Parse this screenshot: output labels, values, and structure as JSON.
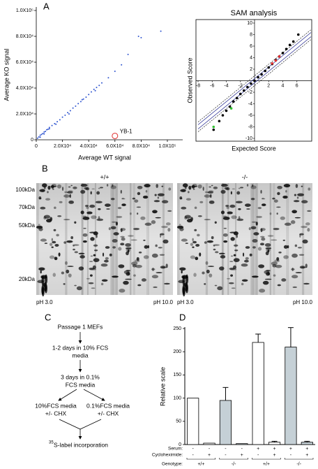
{
  "panel_labels": [
    "A",
    "B",
    "C",
    "D"
  ],
  "chart_data": [
    {
      "type": "scatter",
      "xlabel": "Average WT signal",
      "ylabel": "Average KO signal",
      "color": "#2f55d0",
      "xlim": [
        0,
        100000
      ],
      "ylim": [
        0,
        100000
      ],
      "xticks": [
        0,
        {
          "value": 20000,
          "label": "2.0X10⁴"
        },
        {
          "value": 40000,
          "label": "4.0X10⁴"
        },
        {
          "value": 60000,
          "label": "6.0X10⁴"
        },
        {
          "value": 80000,
          "label": "8.0X10⁴"
        },
        {
          "value": 100000,
          "label": "1.0X10⁵"
        }
      ],
      "yticks": [
        0,
        {
          "value": 20000,
          "label": "2.0X10⁴"
        },
        {
          "value": 40000,
          "label": "4.0X10⁴"
        },
        {
          "value": 60000,
          "label": "6.0X10⁴"
        },
        {
          "value": 80000,
          "label": "8.0X10⁴"
        },
        {
          "value": 100000,
          "label": "1.0X10⁵"
        }
      ],
      "x": [
        1000,
        2000,
        3000,
        4000,
        5000,
        6000,
        7000,
        8000,
        9000,
        10000,
        12000,
        14000,
        16000,
        18000,
        20000,
        22000,
        24000,
        26000,
        28000,
        30000,
        32000,
        34000,
        36000,
        38000,
        40000,
        42000,
        44000,
        46000,
        48000,
        50000,
        55000,
        60000,
        65000,
        70000,
        78000,
        80000,
        95000,
        3000,
        6000,
        10000,
        15000,
        25000,
        35000,
        45000
      ],
      "y": [
        1200,
        2200,
        3500,
        4100,
        4800,
        6000,
        6500,
        7800,
        8200,
        9500,
        11000,
        12500,
        14000,
        15500,
        17500,
        19000,
        21000,
        22500,
        24500,
        26000,
        28000,
        29500,
        31500,
        33000,
        35000,
        37000,
        39000,
        40500,
        42000,
        44000,
        48000,
        53000,
        58000,
        66000,
        80000,
        79000,
        84000,
        2000,
        4500,
        8500,
        12000,
        20000,
        31000,
        38000
      ],
      "annotations": [
        {
          "text": "YB-1",
          "x": 60000,
          "y": 3000,
          "color": "#e03030"
        }
      ]
    },
    {
      "type": "scatter",
      "title": "SAM analysis",
      "xlabel": "Expected Score",
      "ylabel": "Observed Score",
      "xlim": [
        -8,
        8
      ],
      "ylim": [
        -10,
        10
      ],
      "xticks": [
        -8,
        -6,
        -4,
        -2,
        2,
        4,
        6
      ],
      "yticks": [
        -10,
        -8,
        -6,
        -4,
        -2,
        2,
        4,
        6,
        8,
        10
      ],
      "series": [
        {
          "color": "#000000",
          "x": [
            -5.8,
            -5,
            -4.5,
            -4,
            -3.5,
            -3,
            -2.5,
            -2,
            -1.5,
            -1,
            -0.5,
            0,
            0.5,
            1,
            1.5,
            2,
            2.5,
            3,
            3.5,
            4,
            4.5,
            5,
            5.5,
            6.2
          ],
          "y": [
            -8.5,
            -7,
            -6,
            -5.2,
            -4.5,
            -3.6,
            -3,
            -2.3,
            -1.7,
            -1.1,
            -0.5,
            0,
            0.6,
            1.1,
            1.7,
            2.3,
            2.9,
            3.6,
            4.2,
            4.8,
            5.5,
            6.2,
            6.8,
            8
          ]
        },
        {
          "color": "#e03030",
          "x": [
            2.5,
            3,
            3.5
          ],
          "y": [
            3,
            3.5,
            4.2
          ]
        },
        {
          "color": "#30c030",
          "x": [
            -5.8,
            -3.3
          ],
          "y": [
            -8,
            -4.8
          ]
        }
      ]
    },
    {
      "type": "bar",
      "ylabel": "Relative scale",
      "ylim": [
        0,
        250
      ],
      "yticks": [
        0,
        50,
        100,
        150,
        200,
        250
      ],
      "values": [
        100,
        3,
        95,
        2,
        220,
        5,
        210,
        5
      ],
      "errors": [
        null,
        null,
        28,
        null,
        18,
        2,
        42,
        2
      ],
      "colors": [
        "#ffffff",
        "#ffffff",
        "#c5d0d6",
        "#c5d0d6",
        "#ffffff",
        "#ffffff",
        "#c5d0d6",
        "#c5d0d6"
      ],
      "conditions": [
        {
          "label": "Serum:",
          "cells": [
            "-",
            "-",
            "-",
            "-",
            "+",
            "+",
            "+",
            "+"
          ]
        },
        {
          "label": "Cycloheximide:",
          "cells": [
            "-",
            "+",
            "-",
            "+",
            "-",
            "+",
            "-",
            "+"
          ]
        }
      ],
      "genotype": {
        "label": "Genotype:",
        "cells": [
          "+/+",
          "-/-",
          "+/+",
          "-/-"
        ]
      }
    }
  ],
  "gels": [
    {
      "genotype": "+/+",
      "ph_left": "pH 3.0",
      "ph_right": "pH 10.0"
    },
    {
      "genotype": "-/-",
      "ph_left": "pH 3.0",
      "ph_right": "pH 10.0"
    }
  ],
  "mw_markers": [
    "100kDa",
    "70kDa",
    "50kDa",
    "20kDa"
  ],
  "flow": {
    "start": "Passage 1 MEFs",
    "step1": [
      "1-2 days in 10% FCS",
      "media"
    ],
    "step2": [
      "3 days in 0.1%",
      "FCS media"
    ],
    "branch_left": [
      "10%FCS media",
      "+/- CHX"
    ],
    "branch_right": [
      "0.1%FCS media",
      "+/- CHX"
    ],
    "end_sup": "35",
    "end": "S-label incorporation"
  }
}
